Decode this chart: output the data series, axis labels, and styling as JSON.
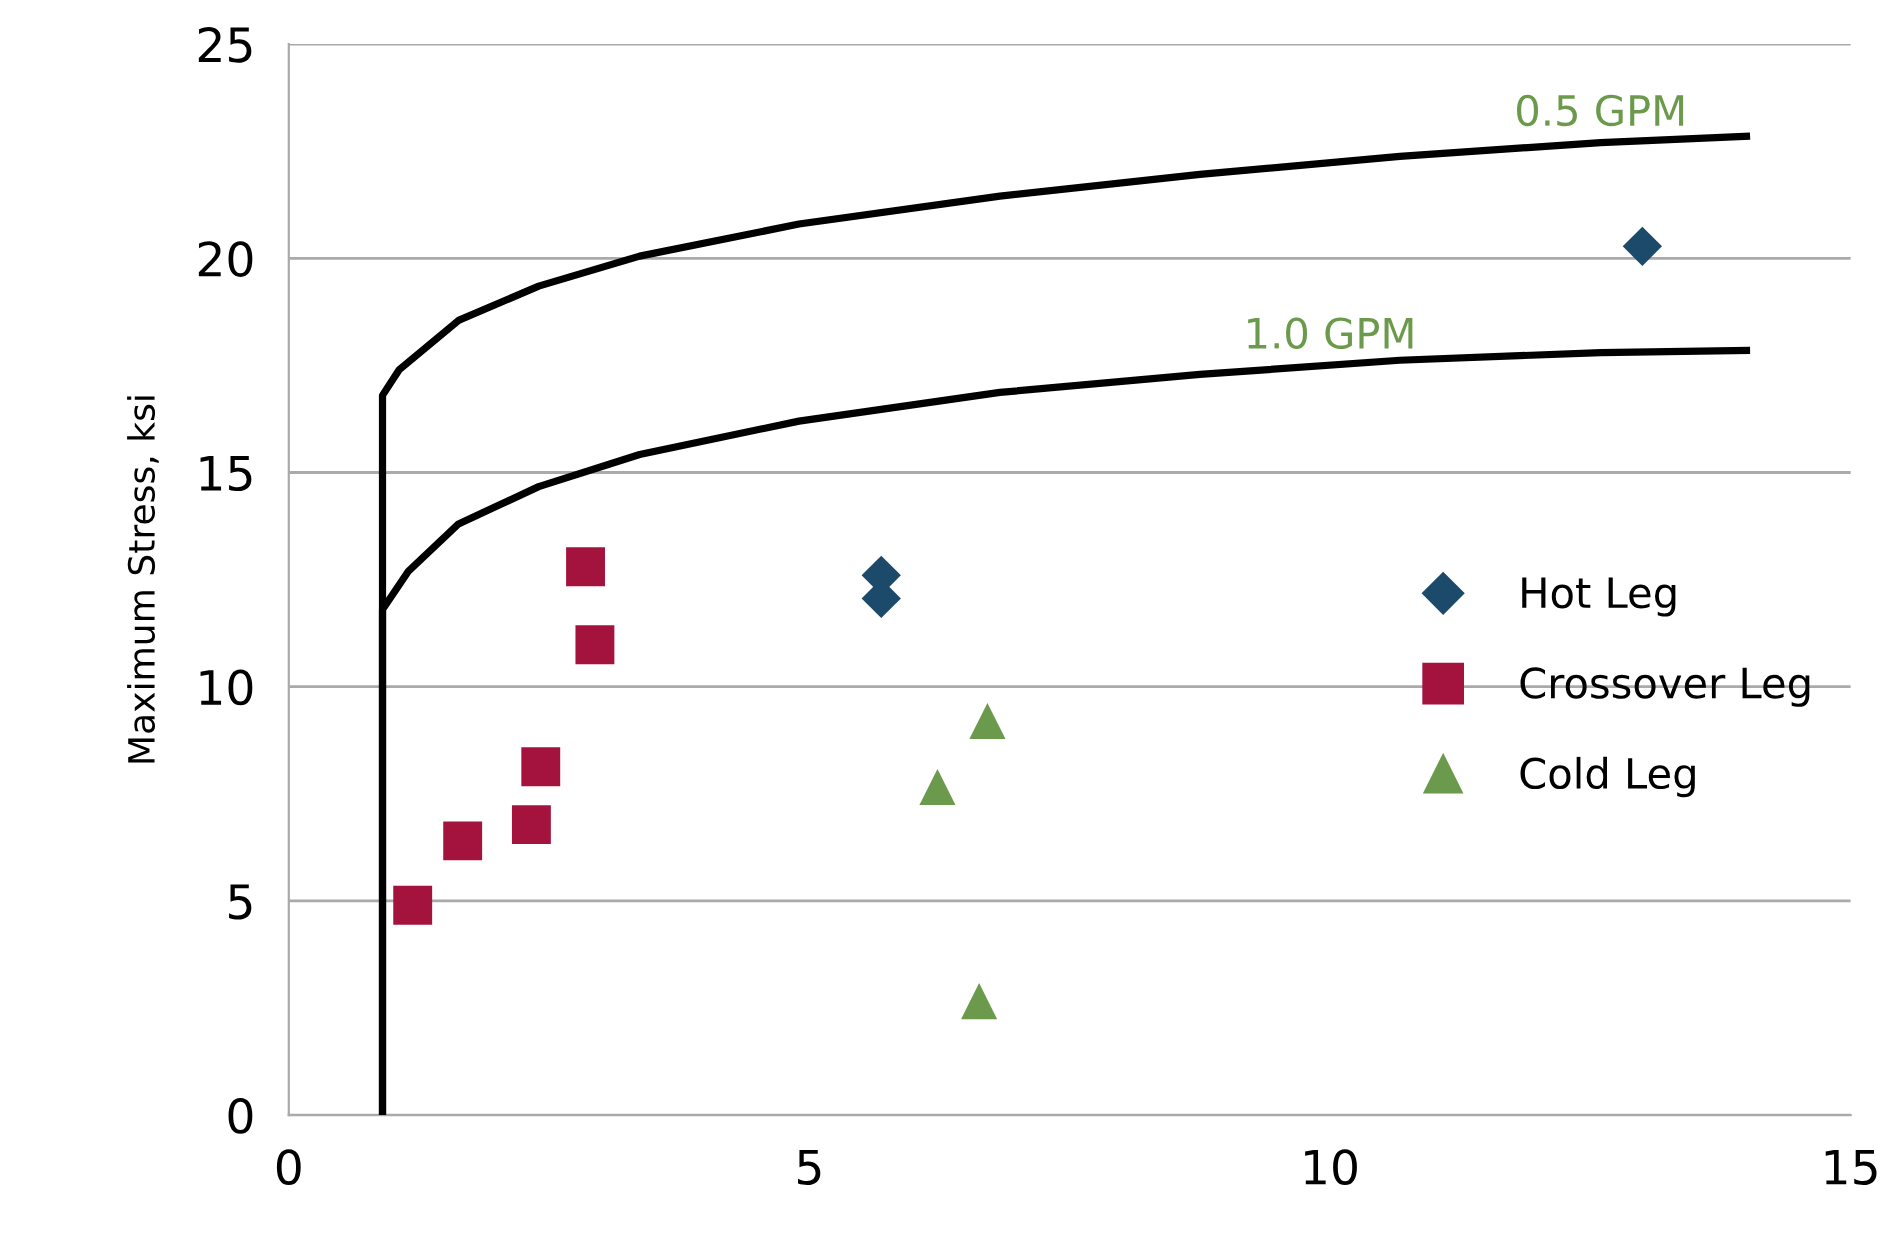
{
  "chart_data": {
    "type": "scatter",
    "ylabel": "Maximum Stress, ksi",
    "xlim": [
      0,
      15
    ],
    "ylim": [
      0,
      25
    ],
    "xticks": [
      0,
      5,
      10,
      15
    ],
    "yticks": [
      0,
      5,
      10,
      15,
      20,
      25
    ],
    "grid": "y",
    "legend": "right",
    "annotations": [
      {
        "text": "0.5 GPM",
        "x": 12.6,
        "y": 22.7
      },
      {
        "text": "1.0 GPM",
        "x": 10.0,
        "y": 17.5
      }
    ],
    "series": [
      {
        "type": "line",
        "marker": "none",
        "line_style": "solid",
        "color": "#000000",
        "x": [
          0.9,
          0.9,
          1.06,
          1.63,
          2.4,
          3.37,
          4.9,
          6.83,
          8.75,
          10.67,
          12.6,
          14.0
        ],
        "values": [
          0,
          16.8,
          17.4,
          18.55,
          19.35,
          20.05,
          20.8,
          21.45,
          21.96,
          22.38,
          22.7,
          22.85
        ]
      },
      {
        "type": "line",
        "marker": "none",
        "line_style": "solid",
        "color": "#000000",
        "x": [
          0.9,
          0.9,
          1.15,
          1.63,
          2.4,
          3.37,
          4.9,
          6.83,
          8.75,
          10.67,
          12.6,
          14.0
        ],
        "values": [
          0,
          11.8,
          12.7,
          13.8,
          14.67,
          15.42,
          16.2,
          16.87,
          17.29,
          17.62,
          17.8,
          17.85
        ]
      },
      {
        "name": "Hot Leg",
        "type": "scatter",
        "marker": "diamond",
        "color": "#1b4a6b",
        "x": [
          5.69,
          5.69,
          13.0
        ],
        "values": [
          12.6,
          12.06,
          20.28
        ]
      },
      {
        "name": "Crossover Leg",
        "type": "scatter",
        "marker": "square",
        "color": "#a3133d",
        "x": [
          1.19,
          1.67,
          2.33,
          2.42,
          2.85,
          2.94
        ],
        "values": [
          4.9,
          6.4,
          6.78,
          8.13,
          12.8,
          10.98
        ]
      },
      {
        "name": "Cold Leg",
        "type": "scatter",
        "marker": "triangle",
        "color": "#6b9a4c",
        "x": [
          6.23,
          6.71,
          6.63
        ],
        "values": [
          7.66,
          9.2,
          2.66
        ]
      }
    ]
  }
}
